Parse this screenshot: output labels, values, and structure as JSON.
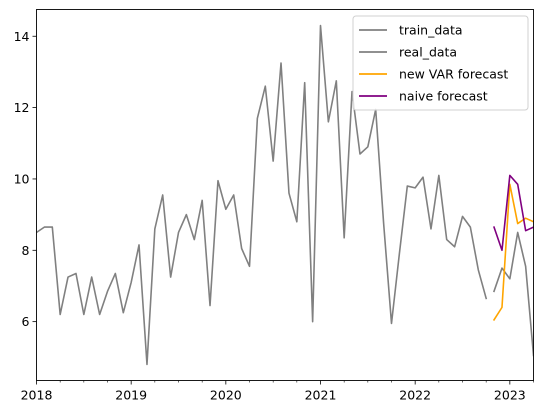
{
  "chart_data": {
    "type": "line",
    "title": "",
    "xlabel": "",
    "ylabel": "",
    "x_range": [
      2018.0,
      2023.25
    ],
    "ylim": [
      4.35,
      14.75
    ],
    "x_ticks": [
      {
        "value": 2018,
        "label": "2018"
      },
      {
        "value": 2019,
        "label": "2019"
      },
      {
        "value": 2020,
        "label": "2020"
      },
      {
        "value": 2021,
        "label": "2021"
      },
      {
        "value": 2022,
        "label": "2022"
      },
      {
        "value": 2023,
        "label": "2023"
      }
    ],
    "y_ticks": [
      {
        "value": 6,
        "label": "6"
      },
      {
        "value": 8,
        "label": "8"
      },
      {
        "value": 10,
        "label": "10"
      },
      {
        "value": 12,
        "label": "12"
      },
      {
        "value": 14,
        "label": "14"
      }
    ],
    "grid": false,
    "legend_placement": "top-right",
    "series": [
      {
        "name": "train_data",
        "color": "#808080",
        "x": [
          2018.0,
          2018.083,
          2018.167,
          2018.25,
          2018.333,
          2018.417,
          2018.5,
          2018.583,
          2018.667,
          2018.75,
          2018.833,
          2018.917,
          2019.0,
          2019.083,
          2019.167,
          2019.25,
          2019.333,
          2019.417,
          2019.5,
          2019.583,
          2019.667,
          2019.75,
          2019.833,
          2019.917,
          2020.0,
          2020.083,
          2020.167,
          2020.25,
          2020.333,
          2020.417,
          2020.5,
          2020.583,
          2020.667,
          2020.75,
          2020.833,
          2020.917,
          2021.0,
          2021.083,
          2021.167,
          2021.25,
          2021.333,
          2021.417,
          2021.5,
          2021.583,
          2021.667,
          2021.75,
          2021.833,
          2021.917,
          2022.0,
          2022.083,
          2022.167,
          2022.25,
          2022.333,
          2022.417,
          2022.5,
          2022.583,
          2022.667,
          2022.75
        ],
        "values": [
          8.5,
          8.65,
          8.65,
          6.2,
          7.25,
          7.35,
          6.2,
          7.25,
          6.2,
          6.85,
          7.35,
          6.25,
          7.1,
          8.15,
          4.8,
          8.6,
          9.55,
          7.25,
          8.5,
          9.0,
          8.3,
          9.4,
          6.45,
          9.95,
          9.15,
          9.55,
          8.05,
          7.55,
          11.7,
          12.6,
          10.5,
          13.25,
          9.6,
          8.8,
          12.7,
          6.0,
          14.3,
          11.6,
          12.75,
          8.35,
          12.45,
          10.7,
          10.9,
          11.95,
          8.75,
          5.95,
          7.9,
          9.8,
          9.75,
          10.05,
          8.6,
          10.1,
          8.3,
          8.1,
          8.95,
          8.65,
          7.45,
          6.65
        ]
      },
      {
        "name": "real_data",
        "color": "#808080",
        "x": [
          2022.833,
          2022.917,
          2023.0,
          2023.083,
          2023.167,
          2023.25
        ],
        "values": [
          6.85,
          7.5,
          7.2,
          8.5,
          7.55,
          5.05
        ]
      },
      {
        "name": "new VAR forecast",
        "color": "#FFA500",
        "x": [
          2022.833,
          2022.917,
          2023.0,
          2023.083,
          2023.167,
          2023.25
        ],
        "values": [
          6.05,
          6.4,
          9.85,
          8.75,
          8.9,
          8.8
        ]
      },
      {
        "name": "naive forecast",
        "color": "#800080",
        "x": [
          2022.833,
          2022.917,
          2023.0,
          2023.083,
          2023.167,
          2023.25
        ],
        "values": [
          8.65,
          8.0,
          10.1,
          9.85,
          8.55,
          8.65
        ]
      }
    ]
  }
}
